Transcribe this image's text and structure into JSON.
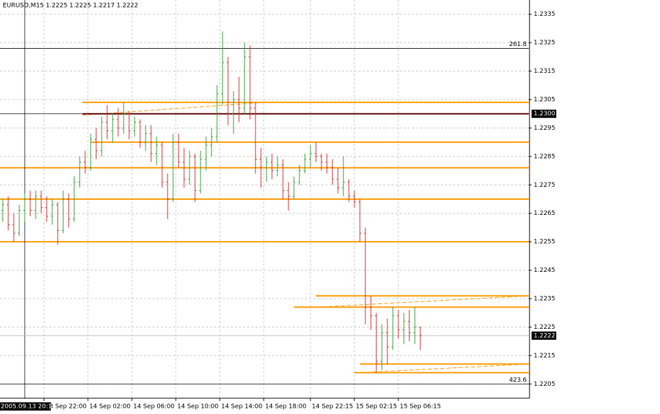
{
  "chart_data": {
    "type": "ohlc",
    "header": "EURUSD,M15  1.2225 1.2225 1.2217 1.2222",
    "x": [
      0,
      2,
      4,
      6,
      8,
      10,
      12,
      14,
      16,
      18,
      20,
      22,
      24,
      26,
      28,
      30,
      32,
      34,
      36,
      38,
      40,
      42,
      44,
      46,
      48,
      50,
      52,
      54,
      56,
      58,
      60,
      62,
      64,
      66,
      68,
      70,
      72,
      74,
      76,
      78,
      80,
      82,
      84,
      86,
      88,
      90,
      92,
      94,
      96,
      98,
      100,
      102,
      104,
      106,
      108,
      110,
      112,
      114,
      116,
      118,
      120,
      122,
      124,
      126,
      128,
      130,
      132,
      134,
      136,
      138,
      140,
      142,
      144,
      146,
      148,
      150,
      152
    ],
    "open": [
      1.2266,
      1.2268,
      1.2261,
      1.2258,
      1.2266,
      1.227,
      1.2266,
      1.2271,
      1.2267,
      1.2264,
      1.2268,
      1.2259,
      1.227,
      1.2263,
      1.2276,
      1.2283,
      1.2281,
      1.2291,
      1.2287,
      1.2297,
      1.2294,
      1.2298,
      1.2295,
      1.23,
      1.2294,
      1.2297,
      1.229,
      1.2293,
      1.2286,
      1.2289,
      1.2276,
      1.227,
      1.229,
      1.2283,
      1.2277,
      1.2285,
      1.2273,
      1.2284,
      1.2289,
      1.2292,
      1.2307,
      1.2318,
      1.23,
      1.2305,
      1.2302,
      1.232,
      1.2302,
      1.2284,
      1.2281,
      1.2283,
      1.228,
      1.2282,
      1.2273,
      1.2271,
      1.2276,
      1.228,
      1.2284,
      1.2286,
      1.2285,
      1.2283,
      1.2281,
      1.2277,
      1.2274,
      1.2276,
      1.2271,
      1.2269,
      1.2258,
      1.2232,
      1.2229,
      1.2213,
      1.2223,
      1.2218,
      1.2229,
      1.2224,
      1.2227,
      1.2223,
      1.2225
    ],
    "high": [
      1.227,
      1.2271,
      1.2265,
      1.2268,
      1.2272,
      1.2273,
      1.2273,
      1.2273,
      1.2271,
      1.227,
      1.2269,
      1.2273,
      1.2272,
      1.2278,
      1.2285,
      1.2287,
      1.2293,
      1.2295,
      1.2299,
      1.2303,
      1.23,
      1.2302,
      1.2304,
      1.2301,
      1.2299,
      1.2298,
      1.2296,
      1.2296,
      1.2292,
      1.229,
      1.2279,
      1.2293,
      1.2293,
      1.2288,
      1.2287,
      1.2286,
      1.2287,
      1.2292,
      1.2295,
      1.231,
      1.2329,
      1.232,
      1.2308,
      1.2313,
      1.2325,
      1.2324,
      1.2304,
      1.2288,
      1.2285,
      1.2286,
      1.2285,
      1.2284,
      1.2276,
      1.2278,
      1.2282,
      1.2286,
      1.2289,
      1.229,
      1.2286,
      1.2286,
      1.2284,
      1.2281,
      1.2285,
      1.2277,
      1.2273,
      1.227,
      1.226,
      1.2236,
      1.223,
      1.2226,
      1.2228,
      1.2232,
      1.2231,
      1.223,
      1.2231,
      1.2232,
      1.2225
    ],
    "low": [
      1.2262,
      1.2259,
      1.2255,
      1.2257,
      1.2262,
      1.2264,
      1.2263,
      1.2265,
      1.2262,
      1.2261,
      1.2254,
      1.2258,
      1.226,
      1.2262,
      1.2274,
      1.2279,
      1.228,
      1.2284,
      1.2285,
      1.2291,
      1.229,
      1.2292,
      1.2293,
      1.2291,
      1.2292,
      1.2288,
      1.2287,
      1.2283,
      1.2282,
      1.2274,
      1.2263,
      1.2269,
      1.2281,
      1.2274,
      1.2275,
      1.2269,
      1.2272,
      1.228,
      1.2285,
      1.229,
      1.2303,
      1.2296,
      1.2293,
      1.2297,
      1.23,
      1.2298,
      1.2279,
      1.2274,
      1.2276,
      1.2277,
      1.2278,
      1.227,
      1.2266,
      1.227,
      1.2275,
      1.2279,
      1.2281,
      1.2283,
      1.228,
      1.2279,
      1.2275,
      1.2272,
      1.2271,
      1.2269,
      1.2267,
      1.2255,
      1.2226,
      1.2224,
      1.2209,
      1.221,
      1.2212,
      1.2217,
      1.2221,
      1.2219,
      1.222,
      1.2219,
      1.2217
    ],
    "close": [
      1.2268,
      1.2261,
      1.2258,
      1.2266,
      1.227,
      1.2266,
      1.2271,
      1.2267,
      1.2264,
      1.2268,
      1.2259,
      1.227,
      1.2263,
      1.2276,
      1.2283,
      1.2281,
      1.2291,
      1.2287,
      1.2297,
      1.2294,
      1.2298,
      1.2295,
      1.23,
      1.2294,
      1.2297,
      1.229,
      1.2293,
      1.2286,
      1.2289,
      1.2276,
      1.227,
      1.229,
      1.2283,
      1.2277,
      1.2285,
      1.2273,
      1.2284,
      1.2289,
      1.2292,
      1.2307,
      1.2318,
      1.23,
      1.2305,
      1.2302,
      1.232,
      1.2302,
      1.2284,
      1.2281,
      1.2283,
      1.228,
      1.2282,
      1.2273,
      1.2271,
      1.2276,
      1.228,
      1.2284,
      1.2286,
      1.2285,
      1.2283,
      1.2281,
      1.2277,
      1.2274,
      1.2276,
      1.2271,
      1.2269,
      1.2258,
      1.2232,
      1.2229,
      1.2213,
      1.2223,
      1.2218,
      1.2229,
      1.2224,
      1.2227,
      1.2223,
      1.2225,
      1.2222
    ],
    "up_color": "#2e9e2e",
    "down_color": "#d02828",
    "xlim": [
      -1,
      191.5
    ],
    "xticks": [
      {
        "value": 15,
        "label": "13 Sep 22:00"
      },
      {
        "value": 31,
        "label": "14 Sep 02:00"
      },
      {
        "value": 47,
        "label": "14 Sep 06:00"
      },
      {
        "value": 63,
        "label": "14 Sep 10:00"
      },
      {
        "value": 79,
        "label": "14 Sep 14:00"
      },
      {
        "value": 95,
        "label": "14 Sep 18:00"
      },
      {
        "value": 112,
        "label": "14 Sep 22:15"
      },
      {
        "value": 128,
        "label": "15 Sep 02:15"
      },
      {
        "value": 144,
        "label": "15 Sep 06:15"
      }
    ],
    "ylim": [
      1.22,
      1.234
    ],
    "yticks": [
      1.2335,
      1.2325,
      1.2315,
      1.2305,
      1.2295,
      1.2285,
      1.2275,
      1.2265,
      1.2255,
      1.2245,
      1.2235,
      1.2225,
      1.2215,
      1.2205
    ],
    "grid": true,
    "levels": [
      {
        "value": 1.2304,
        "start": 29
      },
      {
        "value": 1.229,
        "start": 32
      },
      {
        "value": 1.2281,
        "start": -1
      },
      {
        "value": 1.227,
        "start": -1
      },
      {
        "value": 1.2255,
        "start": -1
      },
      {
        "value": 1.2236,
        "start": 114
      },
      {
        "value": 1.2232,
        "start": 106
      },
      {
        "value": 1.2212,
        "start": 130
      },
      {
        "value": 1.2209,
        "start": 128
      }
    ],
    "level_color": "#ff9900",
    "trendlines": [
      {
        "x": [
          29,
          95
        ],
        "y": [
          1.22995,
          1.2304
        ]
      },
      {
        "x": [
          114,
          191.5
        ],
        "y": [
          1.2232,
          1.2236
        ]
      },
      {
        "x": [
          130,
          191.5
        ],
        "y": [
          1.2209,
          1.2212
        ]
      }
    ],
    "fibo": [
      {
        "value": 1.2323,
        "label": "261.8"
      },
      {
        "value": 1.2205,
        "label": "423.6"
      }
    ],
    "crosshair": {
      "x": {
        "value": 8,
        "label": "2005.09.13 20:15"
      },
      "y": {
        "value": 1.23,
        "label": "1.2300"
      }
    },
    "last_price": {
      "value": 1.2222,
      "label": "1.2222"
    }
  }
}
